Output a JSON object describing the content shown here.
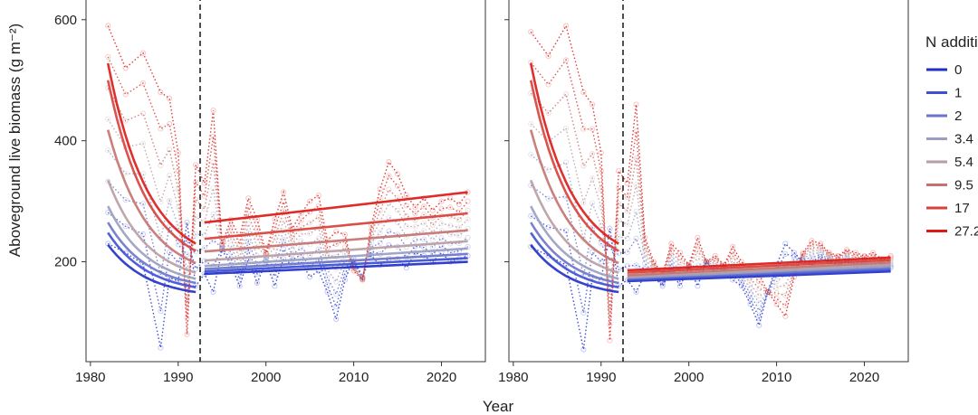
{
  "chart_data": {
    "type": "line",
    "xlabel": "Year",
    "ylabel": "Aboveground live biomass (g m⁻²)",
    "x_ticks": [
      1980,
      1990,
      2000,
      2010,
      2020
    ],
    "y_ticks": [
      200,
      400,
      600
    ],
    "xlim": [
      1979.5,
      2025
    ],
    "ylim": [
      35,
      640
    ],
    "legend": {
      "title": "N addition",
      "labels": [
        "0",
        "1",
        "2",
        "3.4",
        "5.4",
        "9.5",
        "17",
        "27.2"
      ],
      "colors": [
        "#1f2fc8",
        "#3d4fd6",
        "#6b74c8",
        "#9a9fbf",
        "#b99da2",
        "#c5726e",
        "#d8403a",
        "#dd1a16"
      ]
    },
    "panels": [
      {
        "name": "left",
        "break_year": 1992.5,
        "fit_pre": [
          {
            "level": "0",
            "start": [
              1982,
              228
            ],
            "end": [
              1992,
              150
            ]
          },
          {
            "level": "1",
            "start": [
              1982,
              248
            ],
            "end": [
              1992,
              158
            ]
          },
          {
            "level": "2",
            "start": [
              1982,
              265
            ],
            "end": [
              1992,
              165
            ]
          },
          {
            "level": "3.4",
            "start": [
              1982,
              292
            ],
            "end": [
              1992,
              172
            ]
          },
          {
            "level": "5.4",
            "start": [
              1982,
              335
            ],
            "end": [
              1992,
              182
            ]
          },
          {
            "level": "9.5",
            "start": [
              1982,
              418
            ],
            "end": [
              1992,
              198
            ]
          },
          {
            "level": "17",
            "start": [
              1982,
              500
            ],
            "end": [
              1992,
              218
            ]
          },
          {
            "level": "27.2",
            "start": [
              1982,
              528
            ],
            "end": [
              1992,
              230
            ]
          }
        ],
        "fit_post": [
          {
            "level": "0",
            "start": [
              1993,
              180
            ],
            "end": [
              2023,
              200
            ]
          },
          {
            "level": "1",
            "start": [
              1993,
              184
            ],
            "end": [
              2023,
              206
            ]
          },
          {
            "level": "2",
            "start": [
              1993,
              188
            ],
            "end": [
              2023,
              213
            ]
          },
          {
            "level": "3.4",
            "start": [
              1993,
              193
            ],
            "end": [
              2023,
              222
            ]
          },
          {
            "level": "5.4",
            "start": [
              1993,
              202
            ],
            "end": [
              2023,
              234
            ]
          },
          {
            "level": "9.5",
            "start": [
              1993,
              217
            ],
            "end": [
              2023,
              252
            ]
          },
          {
            "level": "17",
            "start": [
              1993,
              238
            ],
            "end": [
              2023,
              280
            ]
          },
          {
            "level": "27.2",
            "start": [
              1993,
              265
            ],
            "end": [
              2023,
              315
            ]
          }
        ],
        "observed_low": [
          [
            1982,
            230
          ],
          [
            1984,
            215
          ],
          [
            1986,
            196
          ],
          [
            1988,
            58
          ],
          [
            1989,
            174
          ],
          [
            1990,
            168
          ],
          [
            1991,
            265
          ],
          [
            1992,
            160
          ],
          [
            1993,
            180
          ],
          [
            1994,
            150
          ],
          [
            1995,
            220
          ],
          [
            1996,
            195
          ],
          [
            1997,
            160
          ],
          [
            1998,
            205
          ],
          [
            1999,
            165
          ],
          [
            2000,
            200
          ],
          [
            2001,
            160
          ],
          [
            2002,
            205
          ],
          [
            2003,
            195
          ],
          [
            2004,
            200
          ],
          [
            2005,
            175
          ],
          [
            2006,
            185
          ],
          [
            2007,
            150
          ],
          [
            2008,
            105
          ],
          [
            2009,
            170
          ],
          [
            2010,
            205
          ],
          [
            2011,
            175
          ],
          [
            2012,
            210
          ],
          [
            2013,
            195
          ],
          [
            2014,
            205
          ],
          [
            2015,
            205
          ],
          [
            2016,
            190
          ],
          [
            2017,
            215
          ],
          [
            2018,
            210
          ],
          [
            2019,
            200
          ],
          [
            2020,
            215
          ],
          [
            2021,
            200
          ],
          [
            2022,
            205
          ],
          [
            2023,
            210
          ]
        ],
        "observed_high": [
          [
            1982,
            590
          ],
          [
            1983,
            520
          ],
          [
            1984,
            545
          ],
          [
            1985,
            480
          ],
          [
            1986,
            470
          ],
          [
            1987,
            380
          ],
          [
            1988,
            80
          ],
          [
            1989,
            360
          ],
          [
            1990,
            330
          ],
          [
            1991,
            450
          ],
          [
            1992,
            230
          ],
          [
            1993,
            270
          ],
          [
            1994,
            240
          ],
          [
            1995,
            305
          ],
          [
            1996,
            270
          ],
          [
            1997,
            215
          ],
          [
            1998,
            270
          ],
          [
            1999,
            315
          ],
          [
            2000,
            255
          ],
          [
            2001,
            280
          ],
          [
            2002,
            300
          ],
          [
            2003,
            310
          ],
          [
            2004,
            235
          ],
          [
            2005,
            250
          ],
          [
            2006,
            245
          ],
          [
            2007,
            185
          ],
          [
            2008,
            170
          ],
          [
            2009,
            260
          ],
          [
            2010,
            320
          ],
          [
            2011,
            365
          ],
          [
            2012,
            345
          ],
          [
            2013,
            310
          ],
          [
            2014,
            290
          ],
          [
            2015,
            305
          ],
          [
            2016,
            285
          ],
          [
            2017,
            300
          ],
          [
            2018,
            305
          ],
          [
            2019,
            295
          ],
          [
            2020,
            315
          ],
          [
            2021,
            300
          ],
          [
            2022,
            305
          ],
          [
            2023,
            315
          ]
        ]
      },
      {
        "name": "right",
        "break_year": 1992.5,
        "fit_pre": [
          {
            "level": "0",
            "start": [
              1982,
              228
            ],
            "end": [
              1992,
              150
            ]
          },
          {
            "level": "1",
            "start": [
              1982,
              248
            ],
            "end": [
              1992,
              158
            ]
          },
          {
            "level": "2",
            "start": [
              1982,
              265
            ],
            "end": [
              1992,
              165
            ]
          },
          {
            "level": "3.4",
            "start": [
              1982,
              292
            ],
            "end": [
              1992,
              172
            ]
          },
          {
            "level": "5.4",
            "start": [
              1982,
              335
            ],
            "end": [
              1992,
              182
            ]
          },
          {
            "level": "9.5",
            "start": [
              1982,
              418
            ],
            "end": [
              1992,
              198
            ]
          },
          {
            "level": "17",
            "start": [
              1982,
              500
            ],
            "end": [
              1992,
              218
            ]
          },
          {
            "level": "27.2",
            "start": [
              1982,
              528
            ],
            "end": [
              1992,
              230
            ]
          }
        ],
        "fit_post": [
          {
            "level": "0",
            "start": [
              1993,
              168
            ],
            "end": [
              2023,
              184
            ]
          },
          {
            "level": "1",
            "start": [
              1993,
              170
            ],
            "end": [
              2023,
              187
            ]
          },
          {
            "level": "2",
            "start": [
              1993,
              172
            ],
            "end": [
              2023,
              190
            ]
          },
          {
            "level": "3.4",
            "start": [
              1993,
              174
            ],
            "end": [
              2023,
              193
            ]
          },
          {
            "level": "5.4",
            "start": [
              1993,
              176
            ],
            "end": [
              2023,
              196
            ]
          },
          {
            "level": "9.5",
            "start": [
              1993,
              178
            ],
            "end": [
              2023,
              199
            ]
          },
          {
            "level": "17",
            "start": [
              1993,
              182
            ],
            "end": [
              2023,
              203
            ]
          },
          {
            "level": "27.2",
            "start": [
              1993,
              186
            ],
            "end": [
              2023,
              207
            ]
          }
        ],
        "observed_low": [
          [
            1982,
            225
          ],
          [
            1984,
            210
          ],
          [
            1986,
            195
          ],
          [
            1988,
            55
          ],
          [
            1989,
            175
          ],
          [
            1990,
            170
          ],
          [
            1991,
            255
          ],
          [
            1992,
            160
          ],
          [
            1993,
            170
          ],
          [
            1994,
            150
          ],
          [
            1995,
            180
          ],
          [
            1996,
            175
          ],
          [
            1997,
            160
          ],
          [
            1998,
            185
          ],
          [
            1999,
            160
          ],
          [
            2000,
            190
          ],
          [
            2001,
            160
          ],
          [
            2002,
            200
          ],
          [
            2003,
            180
          ],
          [
            2004,
            185
          ],
          [
            2005,
            170
          ],
          [
            2006,
            160
          ],
          [
            2007,
            130
          ],
          [
            2008,
            95
          ],
          [
            2009,
            150
          ],
          [
            2010,
            195
          ],
          [
            2011,
            230
          ],
          [
            2012,
            215
          ],
          [
            2013,
            200
          ],
          [
            2014,
            195
          ],
          [
            2015,
            205
          ],
          [
            2016,
            200
          ],
          [
            2017,
            195
          ],
          [
            2018,
            200
          ],
          [
            2019,
            190
          ],
          [
            2020,
            195
          ],
          [
            2021,
            190
          ],
          [
            2022,
            195
          ],
          [
            2023,
            190
          ]
        ],
        "observed_high": [
          [
            1982,
            580
          ],
          [
            1983,
            540
          ],
          [
            1984,
            590
          ],
          [
            1985,
            480
          ],
          [
            1986,
            460
          ],
          [
            1987,
            380
          ],
          [
            1988,
            70
          ],
          [
            1989,
            350
          ],
          [
            1990,
            330
          ],
          [
            1991,
            460
          ],
          [
            1992,
            240
          ],
          [
            1993,
            200
          ],
          [
            1994,
            180
          ],
          [
            1995,
            230
          ],
          [
            1996,
            215
          ],
          [
            1997,
            195
          ],
          [
            1998,
            240
          ],
          [
            1999,
            200
          ],
          [
            2000,
            210
          ],
          [
            2001,
            195
          ],
          [
            2002,
            225
          ],
          [
            2003,
            200
          ],
          [
            2004,
            190
          ],
          [
            2005,
            180
          ],
          [
            2006,
            150
          ],
          [
            2007,
            130
          ],
          [
            2008,
            110
          ],
          [
            2009,
            175
          ],
          [
            2010,
            215
          ],
          [
            2011,
            235
          ],
          [
            2012,
            230
          ],
          [
            2013,
            215
          ],
          [
            2014,
            210
          ],
          [
            2015,
            220
          ],
          [
            2016,
            215
          ],
          [
            2017,
            210
          ],
          [
            2018,
            215
          ],
          [
            2019,
            205
          ],
          [
            2020,
            210
          ],
          [
            2021,
            205
          ],
          [
            2022,
            215
          ],
          [
            2023,
            210
          ]
        ]
      }
    ]
  }
}
